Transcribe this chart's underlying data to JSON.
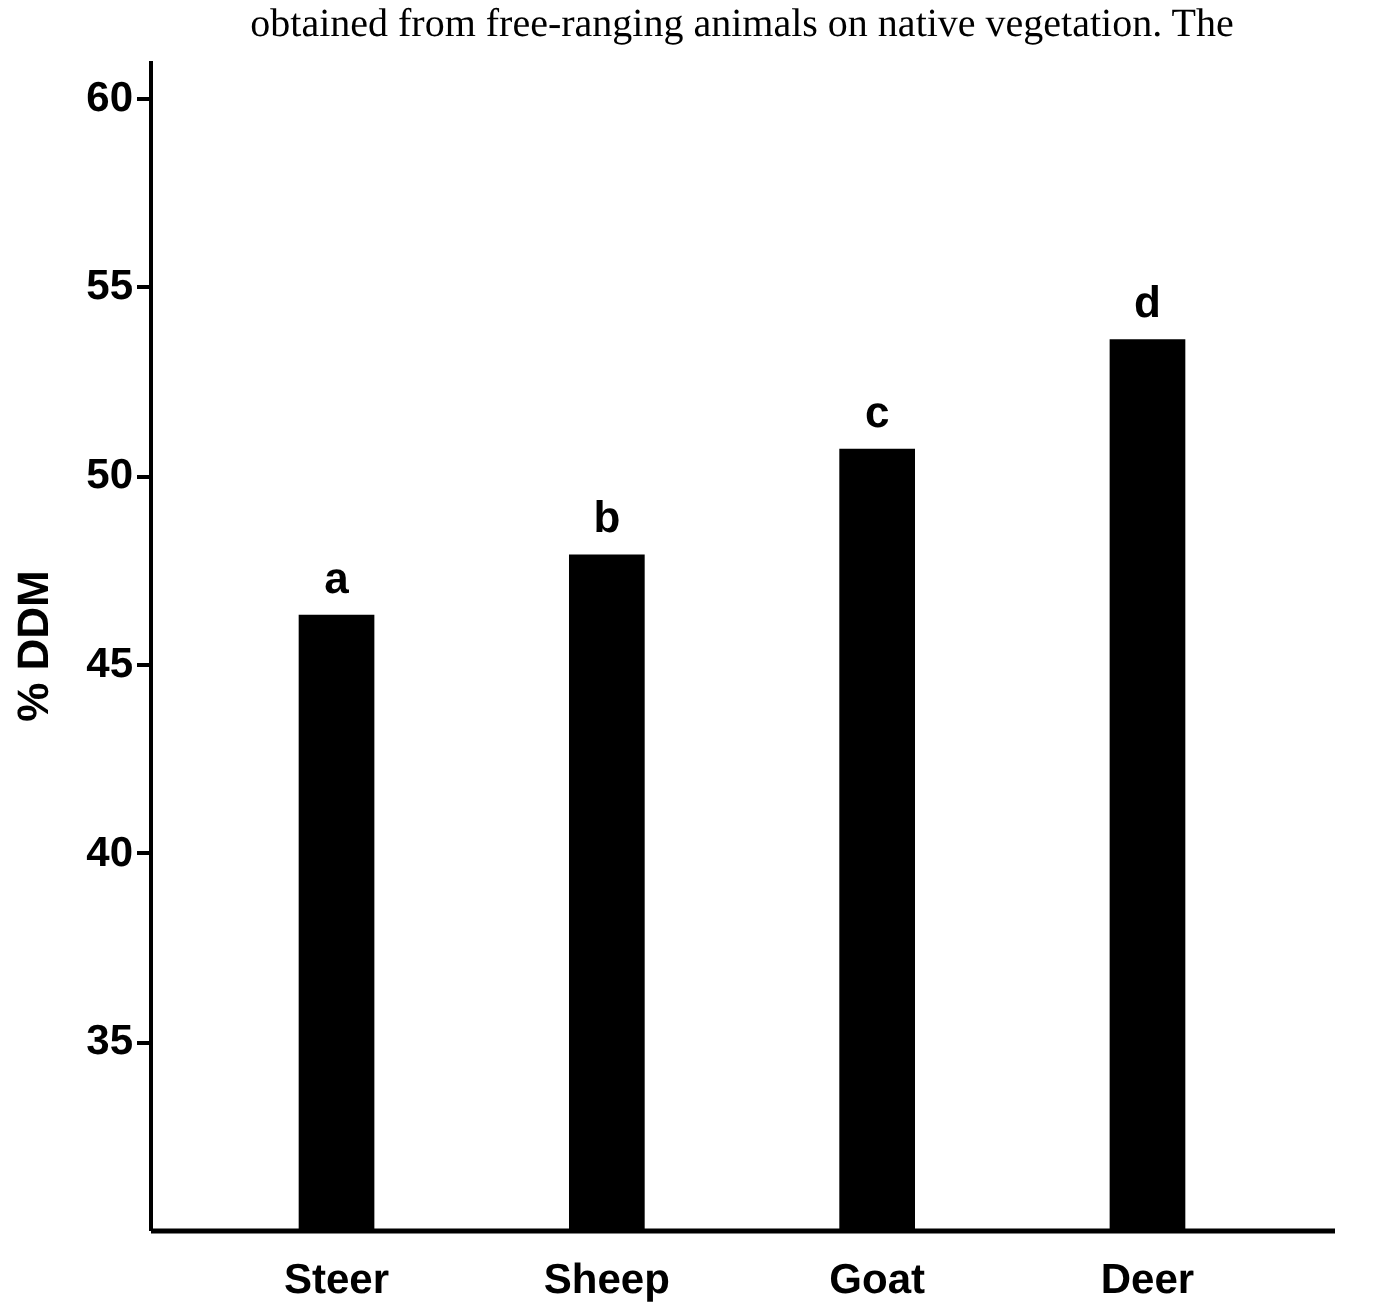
{
  "chart_data": {
    "type": "bar",
    "ylabel": "% DDM",
    "categories": [
      "Steer",
      "Sheep",
      "Goat",
      "Deer"
    ],
    "values": [
      46.3,
      47.9,
      50.7,
      53.6
    ],
    "colors": [
      "#000000",
      "#000000",
      "#000000",
      "#000000"
    ],
    "ylim": [
      30,
      61
    ],
    "yticks": [
      35,
      40,
      45,
      50,
      55,
      60
    ],
    "grid": false,
    "legend": false,
    "annotations": [
      "obtained from free-ranging animals on native vegetation. The",
      {
        "text": "a",
        "x": "Steer",
        "y": 46.3
      },
      {
        "text": "b",
        "x": "Sheep",
        "y": 47.9
      },
      {
        "text": "c",
        "x": "Goat",
        "y": 50.7
      },
      {
        "text": "d",
        "x": "Deer",
        "y": 53.6
      }
    ]
  }
}
